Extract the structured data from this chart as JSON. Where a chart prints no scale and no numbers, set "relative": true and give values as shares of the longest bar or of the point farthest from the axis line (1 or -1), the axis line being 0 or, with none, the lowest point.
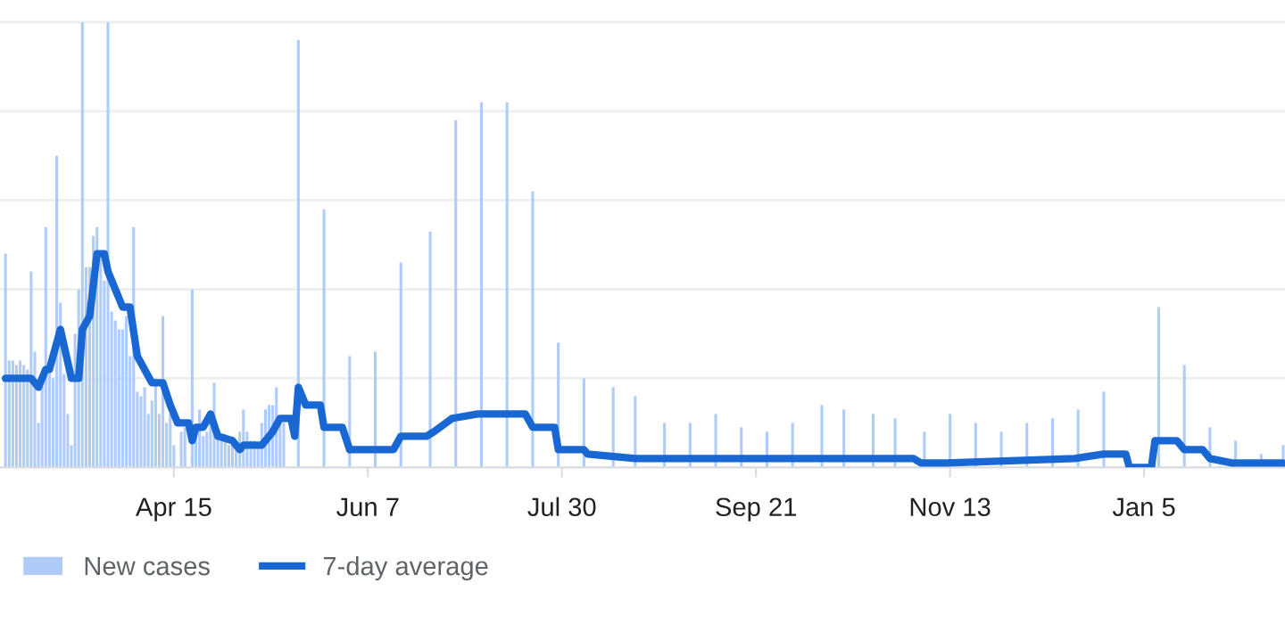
{
  "chart_data": {
    "type": "bar",
    "relative": true,
    "grid": "y",
    "legend": "bottom left",
    "categories": [
      null,
      null,
      null,
      null,
      null,
      null,
      null,
      null,
      null,
      null,
      null,
      null,
      null,
      null,
      null,
      null,
      null,
      null,
      null,
      null,
      null,
      null,
      null,
      null,
      null,
      null,
      null,
      null,
      null,
      null,
      null,
      null,
      null,
      null,
      null,
      null,
      null,
      null,
      null,
      null,
      null,
      null,
      null,
      null,
      null,
      null,
      null,
      "Apr 15",
      null,
      null,
      null,
      null,
      null,
      null,
      null,
      null,
      null,
      null,
      null,
      null,
      null,
      null,
      null,
      null,
      null,
      null,
      null,
      null,
      null,
      null,
      null,
      null,
      null,
      null,
      null,
      null,
      null,
      null,
      null,
      null,
      null,
      null,
      null,
      null,
      null,
      null,
      null,
      null,
      null,
      null,
      null,
      null,
      null,
      null,
      null,
      null,
      null,
      null,
      null,
      null,
      "Jun 7",
      null,
      null,
      null,
      null,
      null,
      null,
      null,
      null,
      null,
      null,
      null,
      null,
      null,
      null,
      null,
      null,
      null,
      null,
      null,
      null,
      null,
      null,
      null,
      null,
      null,
      null,
      null,
      null,
      null,
      null,
      null,
      null,
      null,
      null,
      null,
      null,
      null,
      null,
      null,
      null,
      null,
      null,
      null,
      null,
      null,
      null,
      null,
      null,
      null,
      null,
      null,
      null,
      "Jul 30",
      null,
      null,
      null,
      null,
      null,
      null,
      null,
      null,
      null,
      null,
      null,
      null,
      null,
      null,
      null,
      null,
      null,
      null,
      null,
      null,
      null,
      null,
      null,
      null,
      null,
      null,
      null,
      null,
      null,
      null,
      null,
      null,
      null,
      null,
      null,
      null,
      null,
      null,
      null,
      null,
      null,
      null,
      null,
      null,
      null,
      null,
      null,
      null,
      null,
      null,
      null,
      null,
      "Sep 21",
      null,
      null,
      null,
      null,
      null,
      null,
      null,
      null,
      null,
      null,
      null,
      null,
      null,
      null,
      null,
      null,
      null,
      null,
      null,
      null,
      null,
      null,
      null,
      null,
      null,
      null,
      null,
      null,
      null,
      null,
      null,
      null,
      null,
      null,
      null,
      null,
      null,
      null,
      null,
      null,
      null,
      null,
      null,
      null,
      null,
      null,
      null,
      null,
      null,
      null,
      null,
      null,
      "Nov 13",
      null,
      null,
      null,
      null,
      null,
      null,
      null,
      null,
      null,
      null,
      null,
      null,
      null,
      null,
      null,
      null,
      null,
      null,
      null,
      null,
      null,
      null,
      null,
      null,
      null,
      null,
      null,
      null,
      null,
      null,
      null,
      null,
      null,
      null,
      null,
      null,
      null,
      null,
      null,
      null,
      null,
      null,
      null,
      null,
      null,
      null,
      null,
      null,
      null,
      null,
      null,
      null,
      "Jan 5",
      null,
      null,
      null,
      null,
      null,
      null,
      null,
      null,
      null,
      null,
      null,
      null,
      null,
      null,
      null,
      null,
      null,
      null,
      null,
      null,
      null,
      null,
      null,
      null,
      null,
      null,
      null,
      null,
      null,
      null,
      null,
      null,
      null,
      null,
      null,
      null,
      null,
      null
    ],
    "series": [
      {
        "name": "New cases",
        "color": "#aecbfa",
        "values": [
          null,
          0.48,
          0.24,
          0.24,
          0.23,
          0.24,
          0.23,
          0.22,
          0.44,
          0.26,
          0.1,
          0.2,
          0.54,
          0.22,
          0.2,
          0.7,
          0.37,
          0.21,
          0.12,
          0.05,
          0.3,
          0.4,
          1.0,
          0.45,
          0.45,
          0.52,
          0.54,
          0.48,
          0.42,
          1.0,
          0.35,
          0.33,
          0.31,
          0.31,
          0.34,
          0.25,
          0.54,
          0.17,
          0.16,
          0.18,
          0.12,
          0.15,
          0.2,
          0.12,
          0.34,
          0.1,
          0.12,
          0.05,
          null,
          0.08,
          0.09,
          null,
          0.4,
          0.08,
          0.13,
          0.07,
          0.08,
          0.1,
          0.19,
          0.07,
          0.06,
          0.06,
          0.05,
          0.06,
          0.05,
          0.08,
          0.13,
          0.08,
          0.06,
          0.06,
          0.05,
          0.1,
          0.13,
          0.14,
          0.14,
          0.18,
          0.11,
          0.1,
          null,
          null,
          null,
          0.96,
          null,
          null,
          null,
          null,
          null,
          null,
          0.58,
          null,
          null,
          null,
          null,
          null,
          null,
          0.25,
          null,
          null,
          null,
          null,
          null,
          null,
          0.26,
          null,
          null,
          null,
          null,
          null,
          null,
          0.46,
          null,
          null,
          null,
          null,
          null,
          null,
          null,
          0.53,
          null,
          null,
          null,
          null,
          null,
          null,
          0.78,
          null,
          null,
          null,
          null,
          null,
          null,
          0.82,
          null,
          null,
          null,
          null,
          null,
          null,
          0.82,
          null,
          null,
          null,
          null,
          null,
          null,
          0.62,
          null,
          null,
          null,
          null,
          null,
          null,
          0.28,
          null,
          null,
          null,
          null,
          null,
          null,
          0.2,
          null,
          null,
          null,
          null,
          null,
          null,
          null,
          0.18,
          null,
          null,
          null,
          null,
          null,
          0.16,
          null,
          null,
          null,
          null,
          null,
          null,
          null,
          0.1,
          null,
          null,
          null,
          null,
          null,
          null,
          0.1,
          null,
          null,
          null,
          null,
          null,
          null,
          0.12,
          null,
          null,
          null,
          null,
          null,
          null,
          0.09,
          null,
          null,
          null,
          null,
          null,
          null,
          0.08,
          null,
          null,
          null,
          null,
          null,
          null,
          0.1,
          null,
          null,
          null,
          null,
          null,
          null,
          null,
          0.14,
          null,
          null,
          null,
          null,
          null,
          0.13,
          null,
          null,
          null,
          null,
          null,
          null,
          null,
          0.12,
          null,
          null,
          null,
          null,
          null,
          0.11,
          null,
          null,
          null,
          null,
          null,
          null,
          null,
          0.08,
          null,
          null,
          null,
          null,
          null,
          null,
          0.12,
          null,
          null,
          null,
          null,
          null,
          null,
          0.1,
          null,
          null,
          null,
          null,
          null,
          null,
          0.08,
          null,
          null,
          null,
          null,
          null,
          null,
          0.1,
          null,
          null,
          null,
          null,
          null,
          null,
          0.11,
          null,
          null,
          null,
          null,
          null,
          null,
          0.13,
          null,
          null,
          null,
          null,
          null,
          null,
          0.17,
          null,
          null,
          null,
          null,
          null,
          null,
          null,
          null,
          null,
          null,
          null,
          null,
          null,
          null,
          0.36,
          null,
          null,
          null,
          null,
          null,
          null,
          0.23,
          null,
          null,
          null,
          null,
          null,
          null,
          0.09,
          null,
          null,
          null,
          null,
          null,
          null,
          0.06,
          null,
          null,
          null,
          null,
          null,
          null,
          0.03,
          null,
          null,
          null,
          null,
          null,
          0.05
        ]
      },
      {
        "name": "7-day average",
        "type": "line",
        "color": "#1967d2",
        "values": [
          null,
          0.2,
          null,
          null,
          null,
          null,
          null,
          null,
          0.2,
          null,
          0.18,
          null,
          0.22,
          0.22,
          null,
          null,
          0.31,
          null,
          null,
          0.2,
          null,
          0.2,
          0.31,
          null,
          0.34,
          null,
          0.48,
          null,
          0.48,
          0.44,
          null,
          0.4,
          null,
          0.36,
          null,
          0.36,
          null,
          0.25,
          null,
          0.22,
          null,
          0.19,
          null,
          null,
          0.19,
          null,
          0.14,
          null,
          0.1,
          null,
          null,
          0.1,
          0.06,
          0.09,
          null,
          0.09,
          null,
          0.12,
          null,
          0.07,
          null,
          null,
          null,
          0.06,
          null,
          0.04,
          0.05,
          null,
          null,
          null,
          null,
          0.05,
          null,
          null,
          0.08,
          null,
          0.11,
          null,
          null,
          0.11,
          0.07,
          0.18,
          null,
          0.14,
          null,
          null,
          null,
          0.14,
          0.09,
          null,
          null,
          null,
          null,
          0.09,
          null,
          0.04,
          null,
          null,
          null,
          null,
          null,
          null,
          null,
          null,
          null,
          null,
          null,
          0.04,
          null,
          0.07,
          null,
          null,
          null,
          null,
          null,
          null,
          0.07,
          null,
          0.08,
          null,
          null,
          null,
          null,
          0.11,
          null,
          null,
          null,
          null,
          null,
          null,
          0.12,
          null,
          null,
          null,
          null,
          null,
          null,
          null,
          null,
          null,
          null,
          null,
          null,
          0.12,
          null,
          0.09,
          null,
          null,
          null,
          null,
          null,
          0.09,
          0.04,
          null,
          null,
          null,
          null,
          null,
          null,
          0.04,
          0.03,
          null,
          null,
          null,
          null,
          null,
          null,
          null,
          null,
          null,
          null,
          null,
          null,
          0.02,
          null,
          null,
          null,
          null,
          null,
          null,
          null,
          0.02,
          null,
          null,
          null,
          null,
          null,
          null,
          null,
          null,
          null,
          null,
          null,
          null,
          null,
          0.02,
          null,
          null,
          null,
          null,
          null,
          null,
          null,
          null,
          null,
          null,
          null,
          null,
          null,
          null,
          null,
          null,
          null,
          null,
          null,
          null,
          null,
          null,
          null,
          null,
          null,
          null,
          null,
          null,
          null,
          null,
          null,
          null,
          null,
          0.02,
          null,
          null,
          null,
          null,
          null,
          null,
          null,
          null,
          null,
          null,
          null,
          null,
          null,
          null,
          null,
          null,
          null,
          null,
          null,
          0.02,
          null,
          0.01,
          null,
          null,
          null,
          null,
          null,
          null,
          0.01,
          null,
          null,
          null,
          null,
          null,
          null,
          null,
          null,
          null,
          null,
          null,
          null,
          null,
          null,
          null,
          null,
          null,
          null,
          null,
          null,
          null,
          null,
          null,
          null,
          null,
          null,
          null,
          null,
          null,
          null,
          null,
          null,
          null,
          null,
          0.02,
          null,
          null,
          null,
          null,
          null,
          null,
          null,
          0.03,
          null,
          null,
          null,
          null,
          null,
          0.03,
          0.0,
          null,
          null,
          null,
          null,
          null,
          0.0,
          0.06,
          null,
          null,
          null,
          null,
          null,
          0.06,
          null,
          0.04,
          null,
          null,
          null,
          null,
          0.04,
          null,
          0.02,
          null,
          null,
          null,
          null,
          null,
          0.01,
          null,
          null,
          null,
          null,
          null,
          null,
          null,
          0.01,
          null,
          null,
          null,
          null,
          null,
          0.01
        ]
      }
    ]
  }
}
